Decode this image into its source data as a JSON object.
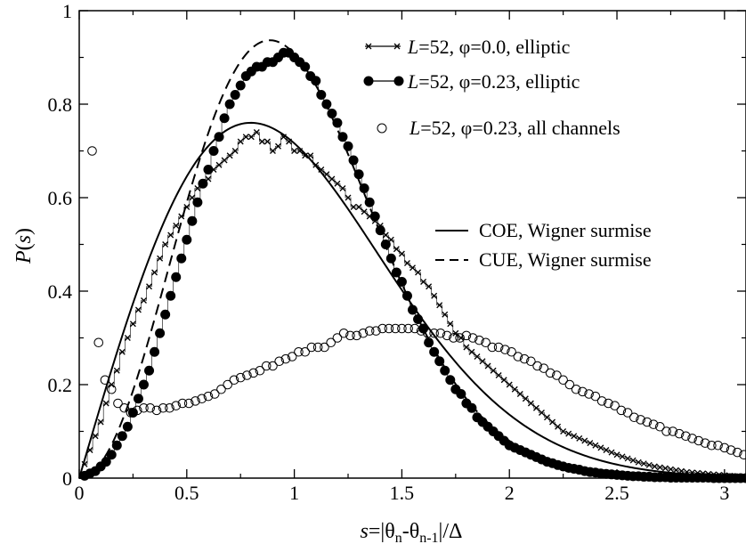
{
  "chart_data": {
    "type": "line",
    "xlim": [
      0,
      3.1
    ],
    "ylim": [
      0,
      1
    ],
    "xticks": [
      0,
      0.5,
      1,
      1.5,
      2,
      2.5,
      3
    ],
    "xtick_labels": [
      "0",
      "0.5",
      "1",
      "1.5",
      "2",
      "2.5",
      "3"
    ],
    "yticks": [
      0,
      0.2,
      0.4,
      0.6,
      0.8,
      1
    ],
    "ytick_labels": [
      "0",
      "0.2",
      "0.4",
      "0.6",
      "0.8",
      "1"
    ],
    "xlabel": {
      "s": "s",
      "eq": "=|θ",
      "sub1": "n",
      "mid": "-θ",
      "sub2": "n-1",
      "end": "|/Δ"
    },
    "ylabel": {
      "p": "P",
      "open": "(",
      "s": "s",
      "close": ")"
    },
    "legend_top": [
      {
        "L": "L",
        "text": "=52, φ=0.0, elliptic",
        "marker": "x-line"
      },
      {
        "L": "L",
        "text": "=52, φ=0.23, elliptic",
        "marker": "filled-circle-line"
      },
      {
        "L": "L",
        "text": "=52, φ=0.23, all channels",
        "marker": "open-circle"
      }
    ],
    "legend_bottom": [
      {
        "text": "COE, Wigner surmise",
        "style": "solid"
      },
      {
        "text": "CUE, Wigner surmise",
        "style": "dashed"
      }
    ],
    "series": [
      {
        "marker": "x",
        "x": [
          0.025,
          0.05,
          0.075,
          0.1,
          0.125,
          0.15,
          0.175,
          0.2,
          0.225,
          0.25,
          0.275,
          0.3,
          0.325,
          0.35,
          0.375,
          0.4,
          0.425,
          0.45,
          0.475,
          0.5,
          0.525,
          0.55,
          0.575,
          0.6,
          0.625,
          0.65,
          0.675,
          0.7,
          0.725,
          0.75,
          0.775,
          0.8,
          0.825,
          0.85,
          0.875,
          0.9,
          0.925,
          0.95,
          0.975,
          1.0,
          1.025,
          1.05,
          1.075,
          1.1,
          1.125,
          1.15,
          1.175,
          1.2,
          1.225,
          1.25,
          1.275,
          1.3,
          1.325,
          1.35,
          1.375,
          1.4,
          1.425,
          1.45,
          1.475,
          1.5,
          1.525,
          1.55,
          1.575,
          1.6,
          1.625,
          1.65,
          1.675,
          1.7,
          1.725,
          1.75,
          1.775,
          1.8,
          1.825,
          1.85,
          1.875,
          1.9,
          1.925,
          1.95,
          1.975,
          2.0,
          2.025,
          2.05,
          2.075,
          2.1,
          2.125,
          2.15,
          2.175,
          2.2,
          2.225,
          2.25,
          2.275,
          2.3,
          2.325,
          2.35,
          2.375,
          2.4,
          2.425,
          2.45,
          2.475,
          2.5,
          2.525,
          2.55,
          2.575,
          2.6,
          2.625,
          2.65,
          2.675,
          2.7,
          2.725,
          2.75,
          2.775,
          2.8,
          2.825,
          2.85,
          2.875,
          2.9,
          2.925,
          2.95,
          2.975,
          3.0,
          3.025,
          3.05,
          3.075,
          3.1
        ],
        "y": [
          0.03,
          0.06,
          0.09,
          0.12,
          0.16,
          0.2,
          0.23,
          0.27,
          0.3,
          0.33,
          0.36,
          0.38,
          0.41,
          0.44,
          0.47,
          0.5,
          0.52,
          0.54,
          0.56,
          0.58,
          0.6,
          0.62,
          0.63,
          0.64,
          0.66,
          0.67,
          0.68,
          0.69,
          0.7,
          0.72,
          0.73,
          0.73,
          0.74,
          0.72,
          0.72,
          0.7,
          0.71,
          0.73,
          0.72,
          0.7,
          0.7,
          0.69,
          0.69,
          0.67,
          0.66,
          0.65,
          0.64,
          0.63,
          0.62,
          0.6,
          0.58,
          0.58,
          0.57,
          0.56,
          0.55,
          0.54,
          0.52,
          0.51,
          0.49,
          0.48,
          0.46,
          0.45,
          0.44,
          0.42,
          0.41,
          0.39,
          0.37,
          0.35,
          0.33,
          0.31,
          0.3,
          0.28,
          0.27,
          0.26,
          0.25,
          0.24,
          0.23,
          0.22,
          0.21,
          0.2,
          0.19,
          0.18,
          0.17,
          0.16,
          0.15,
          0.14,
          0.13,
          0.12,
          0.11,
          0.1,
          0.095,
          0.09,
          0.085,
          0.08,
          0.075,
          0.07,
          0.065,
          0.06,
          0.055,
          0.05,
          0.046,
          0.042,
          0.038,
          0.034,
          0.031,
          0.028,
          0.025,
          0.023,
          0.021,
          0.019,
          0.017,
          0.015,
          0.013,
          0.012,
          0.011,
          0.01,
          0.009,
          0.008,
          0.007,
          0.006,
          0.005,
          0.004,
          0.003,
          0.002
        ]
      },
      {
        "marker": "filled-circle",
        "x": [
          0.025,
          0.05,
          0.075,
          0.1,
          0.125,
          0.15,
          0.175,
          0.2,
          0.225,
          0.25,
          0.275,
          0.3,
          0.325,
          0.35,
          0.375,
          0.4,
          0.425,
          0.45,
          0.475,
          0.5,
          0.525,
          0.55,
          0.575,
          0.6,
          0.625,
          0.65,
          0.675,
          0.7,
          0.725,
          0.75,
          0.775,
          0.8,
          0.825,
          0.85,
          0.875,
          0.9,
          0.925,
          0.95,
          0.975,
          1.0,
          1.025,
          1.05,
          1.075,
          1.1,
          1.125,
          1.15,
          1.175,
          1.2,
          1.225,
          1.25,
          1.275,
          1.3,
          1.325,
          1.35,
          1.375,
          1.4,
          1.425,
          1.45,
          1.475,
          1.5,
          1.525,
          1.55,
          1.575,
          1.6,
          1.625,
          1.65,
          1.675,
          1.7,
          1.725,
          1.75,
          1.775,
          1.8,
          1.825,
          1.85,
          1.875,
          1.9,
          1.925,
          1.95,
          1.975,
          2.0,
          2.025,
          2.05,
          2.075,
          2.1,
          2.125,
          2.15,
          2.175,
          2.2,
          2.225,
          2.25,
          2.275,
          2.3,
          2.325,
          2.35,
          2.375,
          2.4,
          2.425,
          2.45,
          2.475,
          2.5,
          2.525,
          2.55,
          2.575,
          2.6,
          2.625,
          2.65,
          2.675,
          2.7,
          2.725,
          2.75,
          2.775,
          2.8,
          2.825,
          2.85,
          2.875,
          2.9,
          2.925,
          2.95,
          2.975,
          3.0,
          3.025,
          3.05,
          3.075,
          3.1
        ],
        "y": [
          0.005,
          0.01,
          0.015,
          0.025,
          0.035,
          0.05,
          0.07,
          0.09,
          0.11,
          0.14,
          0.17,
          0.2,
          0.23,
          0.27,
          0.31,
          0.35,
          0.39,
          0.43,
          0.47,
          0.51,
          0.55,
          0.59,
          0.63,
          0.66,
          0.7,
          0.73,
          0.77,
          0.8,
          0.82,
          0.84,
          0.86,
          0.87,
          0.88,
          0.88,
          0.89,
          0.89,
          0.9,
          0.91,
          0.91,
          0.9,
          0.89,
          0.88,
          0.86,
          0.85,
          0.82,
          0.8,
          0.78,
          0.76,
          0.73,
          0.71,
          0.68,
          0.65,
          0.62,
          0.59,
          0.56,
          0.53,
          0.5,
          0.47,
          0.44,
          0.42,
          0.39,
          0.36,
          0.34,
          0.32,
          0.29,
          0.27,
          0.25,
          0.23,
          0.21,
          0.19,
          0.18,
          0.16,
          0.15,
          0.13,
          0.12,
          0.11,
          0.1,
          0.09,
          0.08,
          0.07,
          0.065,
          0.06,
          0.055,
          0.05,
          0.045,
          0.04,
          0.035,
          0.032,
          0.028,
          0.025,
          0.022,
          0.02,
          0.018,
          0.015,
          0.013,
          0.012,
          0.01,
          0.009,
          0.008,
          0.007,
          0.006,
          0.005,
          0.004,
          0.004,
          0.003,
          0.003,
          0.002,
          0.002,
          0.002,
          0.001,
          0.001,
          0.001,
          0.001,
          0.001,
          0.001,
          0.001,
          0.001,
          0.0,
          0.0,
          0.0,
          0.0,
          0.0,
          0.0,
          0.0
        ]
      },
      {
        "marker": "open-circle",
        "x": [
          0.06,
          0.09,
          0.12,
          0.15,
          0.18,
          0.21,
          0.24,
          0.27,
          0.3,
          0.33,
          0.36,
          0.39,
          0.42,
          0.45,
          0.48,
          0.51,
          0.54,
          0.57,
          0.6,
          0.63,
          0.66,
          0.69,
          0.72,
          0.75,
          0.78,
          0.81,
          0.84,
          0.87,
          0.9,
          0.93,
          0.96,
          0.99,
          1.02,
          1.05,
          1.08,
          1.11,
          1.14,
          1.17,
          1.2,
          1.23,
          1.26,
          1.29,
          1.32,
          1.35,
          1.38,
          1.41,
          1.44,
          1.47,
          1.5,
          1.53,
          1.56,
          1.59,
          1.62,
          1.65,
          1.68,
          1.71,
          1.74,
          1.77,
          1.8,
          1.83,
          1.86,
          1.89,
          1.92,
          1.95,
          1.98,
          2.01,
          2.04,
          2.07,
          2.1,
          2.13,
          2.16,
          2.19,
          2.22,
          2.25,
          2.28,
          2.31,
          2.34,
          2.37,
          2.4,
          2.43,
          2.46,
          2.49,
          2.52,
          2.55,
          2.58,
          2.61,
          2.64,
          2.67,
          2.7,
          2.73,
          2.76,
          2.79,
          2.82,
          2.85,
          2.88,
          2.91,
          2.94,
          2.97,
          3.0,
          3.03,
          3.06,
          3.09
        ],
        "y": [
          0.7,
          0.29,
          0.21,
          0.19,
          0.16,
          0.15,
          0.14,
          0.145,
          0.15,
          0.15,
          0.145,
          0.15,
          0.15,
          0.155,
          0.16,
          0.16,
          0.165,
          0.17,
          0.175,
          0.18,
          0.19,
          0.2,
          0.21,
          0.215,
          0.22,
          0.225,
          0.23,
          0.24,
          0.24,
          0.25,
          0.255,
          0.26,
          0.27,
          0.27,
          0.28,
          0.28,
          0.28,
          0.29,
          0.3,
          0.31,
          0.305,
          0.305,
          0.31,
          0.315,
          0.315,
          0.32,
          0.32,
          0.32,
          0.32,
          0.32,
          0.32,
          0.315,
          0.31,
          0.31,
          0.31,
          0.305,
          0.3,
          0.3,
          0.305,
          0.3,
          0.295,
          0.29,
          0.28,
          0.28,
          0.275,
          0.27,
          0.26,
          0.255,
          0.25,
          0.24,
          0.235,
          0.225,
          0.22,
          0.21,
          0.2,
          0.19,
          0.185,
          0.18,
          0.175,
          0.165,
          0.16,
          0.155,
          0.145,
          0.14,
          0.13,
          0.125,
          0.12,
          0.115,
          0.11,
          0.1,
          0.1,
          0.095,
          0.09,
          0.085,
          0.08,
          0.075,
          0.07,
          0.07,
          0.065,
          0.06,
          0.055,
          0.05
        ]
      }
    ],
    "curves": [
      {
        "style": "solid",
        "formula": "COE"
      },
      {
        "style": "dashed",
        "formula": "CUE"
      }
    ]
  }
}
